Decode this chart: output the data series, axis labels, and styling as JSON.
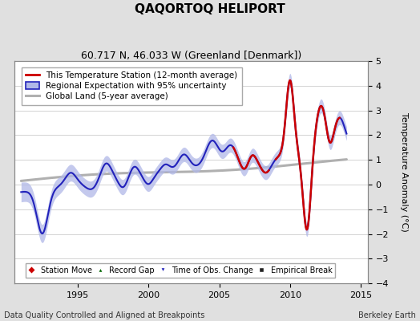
{
  "title": "QAQORTOQ HELIPORT",
  "subtitle": "60.717 N, 46.033 W (Greenland [Denmark])",
  "ylabel": "Temperature Anomaly (°C)",
  "footer_left": "Data Quality Controlled and Aligned at Breakpoints",
  "footer_right": "Berkeley Earth",
  "xlim": [
    1990.5,
    2015.5
  ],
  "ylim": [
    -4,
    5
  ],
  "yticks": [
    -4,
    -3,
    -2,
    -1,
    0,
    1,
    2,
    3,
    4,
    5
  ],
  "xticks": [
    1995,
    2000,
    2005,
    2010,
    2015
  ],
  "bg_color": "#e0e0e0",
  "plot_bg_color": "#ffffff",
  "regional_line_color": "#2222bb",
  "regional_fill_color": "#b0b8e8",
  "station_line_color": "#cc0000",
  "global_line_color": "#b0b0b0",
  "title_fontsize": 11,
  "subtitle_fontsize": 9,
  "legend_fontsize": 7.5,
  "axis_fontsize": 8,
  "footer_fontsize": 7
}
